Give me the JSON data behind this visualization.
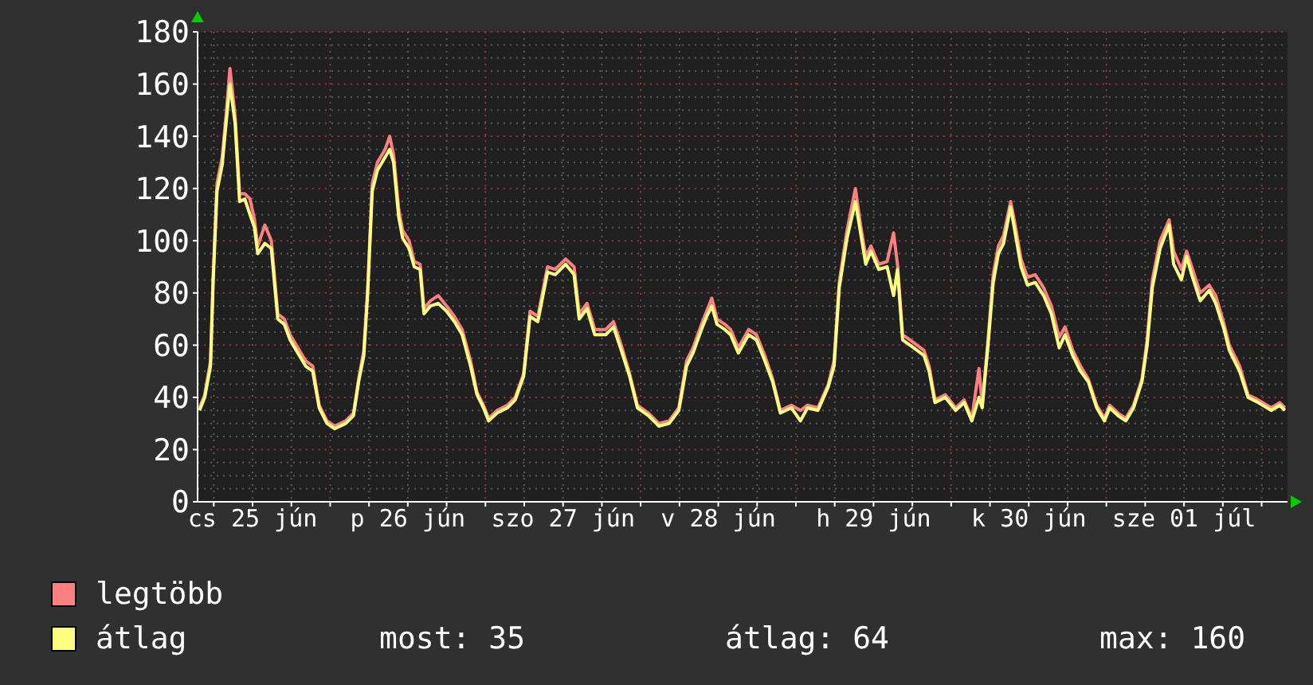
{
  "chart_data": {
    "type": "line",
    "x": [
      "--06-25T03:48",
      "--06-25T04:36",
      "--06-25T05:30",
      "--06-25T05:54",
      "--06-25T06:30",
      "--06-25T07:18",
      "--06-25T07:54",
      "--06-25T08:30",
      "--06-25T09:18",
      "--06-25T10:00",
      "--06-25T10:48",
      "--06-25T11:36",
      "--06-25T12:18",
      "--06-25T12:48",
      "--06-25T13:54",
      "--06-25T14:54",
      "--06-25T15:54",
      "--06-25T16:54",
      "--06-25T17:48",
      "--06-25T19:00",
      "--06-25T20:12",
      "--06-25T21:18",
      "--06-25T22:18",
      "--06-25T23:30",
      "--06-26T00:42",
      "--06-26T02:24",
      "--06-26T03:36",
      "--06-26T04:24",
      "--06-26T05:12",
      "--06-26T05:48",
      "--06-26T06:30",
      "--06-26T07:18",
      "--06-26T08:30",
      "--06-26T09:12",
      "--06-26T09:48",
      "--06-26T10:36",
      "--06-26T11:12",
      "--06-26T12:12",
      "--06-26T13:00",
      "--06-26T13:54",
      "--06-26T14:30",
      "--06-26T15:30",
      "--06-26T16:42",
      "--06-26T18:00",
      "--06-26T19:12",
      "--06-26T20:24",
      "--06-26T21:42",
      "--06-26T22:42",
      "--06-26T23:42",
      "--06-27T00:30",
      "--06-27T01:48",
      "--06-27T03:24",
      "--06-27T04:36",
      "--06-27T05:54",
      "--06-27T06:54",
      "--06-27T08:06",
      "--06-27T09:36",
      "--06-27T10:48",
      "--06-27T12:24",
      "--06-27T13:42",
      "--06-27T14:30",
      "--06-27T15:42",
      "--06-27T16:54",
      "--06-27T18:36",
      "--06-27T19:48",
      "--06-27T21:00",
      "--06-27T22:18",
      "--06-27T23:30",
      "--06-28T01:12",
      "--06-28T02:48",
      "--06-28T04:24",
      "--06-28T05:54",
      "--06-28T07:06",
      "--06-28T08:06",
      "--06-28T09:24",
      "--06-28T10:12",
      "--06-28T11:00",
      "--06-28T11:48",
      "--06-28T13:00",
      "--06-28T13:54",
      "--06-28T15:06",
      "--06-28T16:42",
      "--06-28T17:54",
      "--06-28T19:12",
      "--06-28T20:24",
      "--06-28T21:36",
      "--06-28T23:18",
      "--06-29T00:42",
      "--06-29T01:48",
      "--06-29T03:24",
      "--06-29T05:00",
      "--06-29T05:54",
      "--06-29T06:42",
      "--06-29T07:54",
      "--06-29T09:12",
      "--06-29T10:00",
      "--06-29T10:48",
      "--06-29T11:36",
      "--06-29T12:48",
      "--06-29T14:06",
      "--06-29T15:06",
      "--06-29T15:42",
      "--06-29T16:30",
      "--06-29T18:12",
      "--06-29T19:48",
      "--06-29T20:36",
      "--06-29T21:30",
      "--06-29T23:06",
      "--06-30T00:42",
      "--06-30T02:00",
      "--06-30T03:12",
      "--06-30T04:18",
      "--06-30T04:48",
      "--06-30T05:42",
      "--06-30T06:30",
      "--06-30T07:18",
      "--06-30T08:06",
      "--06-30T09:12",
      "--06-30T09:54",
      "--06-30T10:48",
      "--06-30T11:48",
      "--06-30T13:00",
      "--06-30T14:18",
      "--06-30T15:30",
      "--06-30T16:42",
      "--06-30T17:36",
      "--06-30T18:48",
      "--06-30T20:00",
      "--06-30T21:12",
      "--06-30T22:30",
      "--06-30T23:42",
      "--07-01T00:30",
      "--07-01T01:48",
      "--07-01T03:00",
      "--07-01T04:12",
      "--07-01T05:30",
      "--07-01T06:18",
      "--07-01T07:06",
      "--07-01T08:18",
      "--07-01T09:42",
      "--07-01T10:24",
      "--07-01T11:36",
      "--07-01T12:24",
      "--07-01T13:12",
      "--07-01T14:30",
      "--07-01T15:54",
      "--07-01T16:54",
      "--07-01T18:12",
      "--07-01T19:00",
      "--07-01T20:36",
      "--07-01T21:54",
      "--07-01T23:30",
      "--07-02T01:30",
      "--07-02T02:48",
      "--07-02T03:36"
    ],
    "series": [
      {
        "name": "legtöbb",
        "color": "#ff8080",
        "values": [
          36,
          41,
          54,
          86,
          122,
          132,
          148,
          166,
          148,
          118,
          118,
          116,
          108,
          98,
          106,
          100,
          72,
          70,
          64,
          59,
          54,
          52,
          37,
          31,
          29,
          31,
          34,
          47,
          58,
          82,
          122,
          130,
          135,
          140,
          133,
          112,
          104,
          100,
          92,
          91,
          74,
          77,
          79,
          75,
          71,
          66,
          54,
          42,
          37,
          32,
          35,
          37,
          40,
          49,
          73,
          71,
          90,
          89,
          93,
          90,
          72,
          76,
          66,
          66,
          69,
          60,
          49,
          37,
          34,
          30,
          31,
          36,
          54,
          59,
          68,
          73,
          78,
          70,
          68,
          66,
          59,
          66,
          64,
          56,
          47,
          35,
          37,
          35,
          37,
          36,
          45,
          54,
          84,
          104,
          120,
          106,
          94,
          98,
          91,
          92,
          103,
          91,
          64,
          61,
          58,
          52,
          39,
          41,
          36,
          39,
          32,
          51,
          37,
          62,
          87,
          98,
          102,
          115,
          106,
          93,
          86,
          87,
          82,
          75,
          63,
          67,
          58,
          52,
          47,
          37,
          32,
          37,
          34,
          32,
          37,
          47,
          62,
          85,
          100,
          108,
          96,
          89,
          96,
          90,
          80,
          83,
          79,
          68,
          60,
          52,
          41,
          39,
          36,
          38,
          36
        ]
      },
      {
        "name": "átlag",
        "color": "#ffff80",
        "values": [
          35,
          40,
          52,
          84,
          119,
          129,
          145,
          160,
          145,
          115,
          116,
          110,
          105,
          95,
          99,
          97,
          70,
          68,
          62,
          57,
          52,
          50,
          36,
          30,
          28,
          30,
          33,
          46,
          56,
          80,
          119,
          127,
          132,
          135,
          130,
          109,
          101,
          97,
          90,
          89,
          72,
          75,
          76,
          73,
          69,
          64,
          52,
          41,
          36,
          31,
          34,
          36,
          39,
          48,
          71,
          69,
          88,
          87,
          91,
          87,
          70,
          74,
          64,
          64,
          67,
          58,
          48,
          36,
          33,
          29,
          30,
          35,
          52,
          57,
          66,
          71,
          75,
          68,
          66,
          64,
          57,
          64,
          62,
          54,
          46,
          34,
          36,
          31,
          36,
          35,
          44,
          52,
          82,
          101,
          115,
          103,
          91,
          96,
          89,
          90,
          79,
          89,
          62,
          59,
          56,
          50,
          38,
          40,
          35,
          38,
          31,
          40,
          36,
          60,
          84,
          95,
          99,
          113,
          103,
          90,
          83,
          84,
          79,
          72,
          59,
          64,
          56,
          50,
          46,
          36,
          31,
          36,
          33,
          31,
          36,
          46,
          60,
          82,
          97,
          106,
          91,
          85,
          94,
          87,
          77,
          81,
          76,
          66,
          58,
          50,
          40,
          38,
          35,
          37,
          35
        ]
      }
    ],
    "xlim": [
      "--06-25T03:30",
      "--07-02T04:00"
    ],
    "xticks": [
      {
        "value": "--06-25T06:00",
        "label": null
      },
      {
        "value": "--06-25T12:00",
        "label": "cs 25 jún"
      },
      {
        "value": "--06-25T18:00",
        "label": null
      },
      {
        "value": "--06-26T00:00",
        "label": null
      },
      {
        "value": "--06-26T06:00",
        "label": null
      },
      {
        "value": "--06-26T12:00",
        "label": "p 26 jún"
      },
      {
        "value": "--06-26T18:00",
        "label": null
      },
      {
        "value": "--06-27T00:00",
        "label": null
      },
      {
        "value": "--06-27T06:00",
        "label": null
      },
      {
        "value": "--06-27T12:00",
        "label": "szo 27 jún"
      },
      {
        "value": "--06-27T18:00",
        "label": null
      },
      {
        "value": "--06-28T00:00",
        "label": null
      },
      {
        "value": "--06-28T06:00",
        "label": null
      },
      {
        "value": "--06-28T12:00",
        "label": "v 28 jún"
      },
      {
        "value": "--06-28T18:00",
        "label": null
      },
      {
        "value": "--06-29T00:00",
        "label": null
      },
      {
        "value": "--06-29T06:00",
        "label": null
      },
      {
        "value": "--06-29T12:00",
        "label": "h 29 jún"
      },
      {
        "value": "--06-29T18:00",
        "label": null
      },
      {
        "value": "--06-30T00:00",
        "label": null
      },
      {
        "value": "--06-30T06:00",
        "label": null
      },
      {
        "value": "--06-30T12:00",
        "label": "k 30 jún"
      },
      {
        "value": "--06-30T18:00",
        "label": null
      },
      {
        "value": "--07-01T00:00",
        "label": null
      },
      {
        "value": "--07-01T06:00",
        "label": null
      },
      {
        "value": "--07-01T12:00",
        "label": "sze 01 júl"
      },
      {
        "value": "--07-01T18:00",
        "label": null
      },
      {
        "value": "--07-02T00:00",
        "label": null
      }
    ],
    "ylim": [
      0,
      180
    ],
    "yticks": [
      0,
      20,
      40,
      60,
      80,
      100,
      120,
      140,
      160,
      180
    ],
    "grid": true,
    "legend": "bottom left",
    "marker": "none",
    "line_style": "solid",
    "annotations": [
      "most: 35",
      "átlag: 64",
      "max: 160"
    ]
  }
}
